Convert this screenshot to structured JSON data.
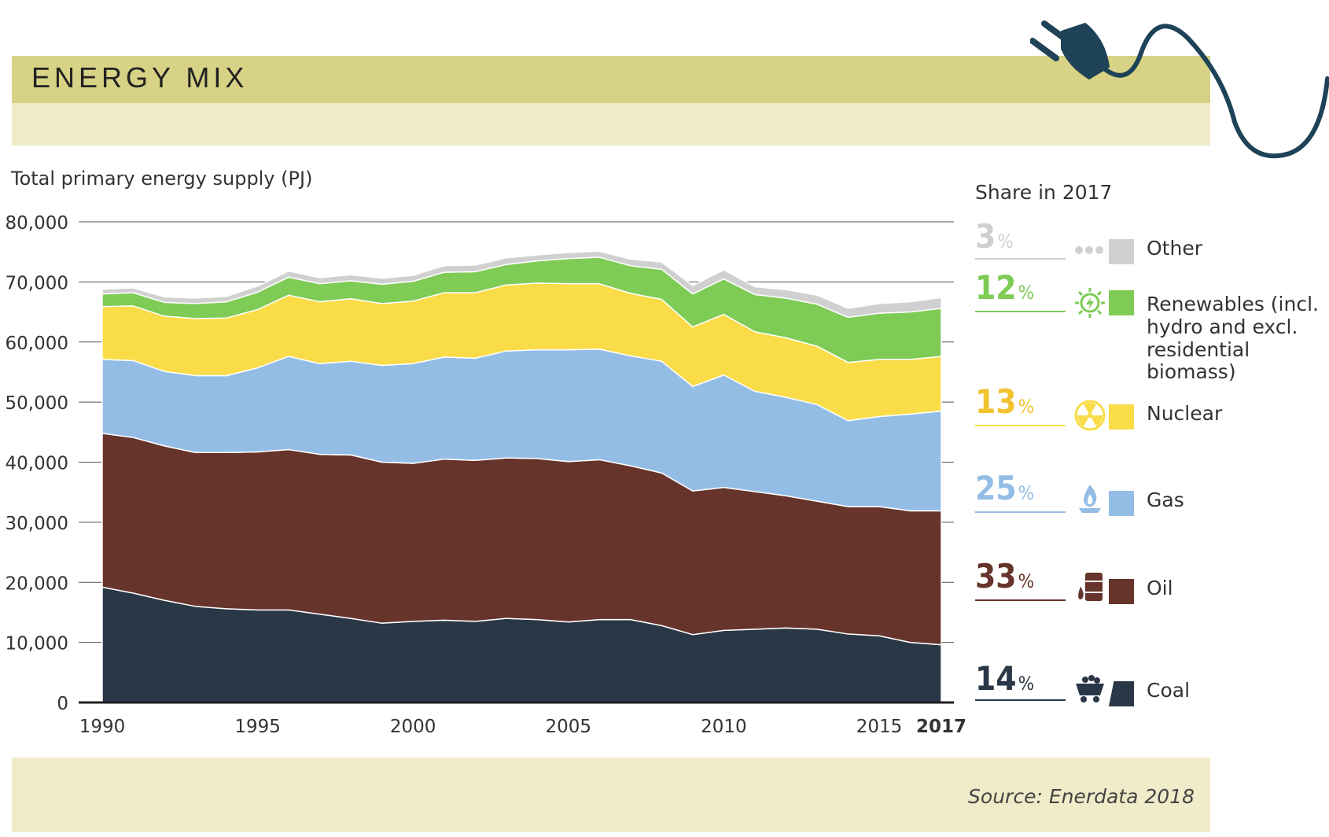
{
  "header": {
    "title": "ENERGY MIX"
  },
  "source": "Source: Enerdata 2018",
  "legend": {
    "title": "Share in 2017",
    "items": [
      {
        "key": "other",
        "pct": "3",
        "unit": "%",
        "label": "Other",
        "color": "#d0d0d0",
        "icon": "dots-icon"
      },
      {
        "key": "renewables",
        "pct": "12",
        "unit": "%",
        "label": "Renewables (incl. hydro and excl. residential biomass)",
        "color": "#7ecb56",
        "icon": "sun-icon"
      },
      {
        "key": "nuclear",
        "pct": "13",
        "unit": "%",
        "label": "Nuclear",
        "color": "#f9dc47",
        "icon": "radiation-icon"
      },
      {
        "key": "gas",
        "pct": "25",
        "unit": "%",
        "label": "Gas",
        "color": "#94bde6",
        "icon": "flame-icon"
      },
      {
        "key": "oil",
        "pct": "33",
        "unit": "%",
        "label": "Oil",
        "color": "#66342b",
        "icon": "barrel-icon"
      },
      {
        "key": "coal",
        "pct": "14",
        "unit": "%",
        "label": "Coal",
        "color": "#2a3747",
        "icon": "minecart-icon"
      }
    ]
  },
  "chart_data": {
    "type": "area",
    "stacked": true,
    "title": "",
    "ylabel": "Total primary energy supply (PJ)",
    "xlabel": "",
    "ylim": [
      0,
      80000
    ],
    "yticks": [
      0,
      10000,
      20000,
      30000,
      40000,
      50000,
      60000,
      70000,
      80000
    ],
    "ytick_labels": [
      "0",
      "10,000",
      "20,000",
      "30,000",
      "40,000",
      "50,000",
      "60,000",
      "70,000",
      "80,000"
    ],
    "xticks": [
      1990,
      1995,
      2000,
      2005,
      2010,
      2015,
      2017
    ],
    "xtick_labels": [
      "1990",
      "1995",
      "2000",
      "2005",
      "2010",
      "2015",
      "2017"
    ],
    "grid": true,
    "x": [
      1990,
      1991,
      1992,
      1993,
      1994,
      1995,
      1996,
      1997,
      1998,
      1999,
      2000,
      2001,
      2002,
      2003,
      2004,
      2005,
      2006,
      2007,
      2008,
      2009,
      2010,
      2011,
      2012,
      2013,
      2014,
      2015,
      2016,
      2017
    ],
    "series": [
      {
        "name": "Coal",
        "color": "#2a3747",
        "values": [
          19200,
          18200,
          17000,
          16000,
          15600,
          15400,
          15400,
          14700,
          14000,
          13200,
          13500,
          13700,
          13500,
          14000,
          13800,
          13400,
          13800,
          13800,
          12800,
          11300,
          12000,
          12200,
          12400,
          12200,
          11400,
          11100,
          10000,
          9600
        ]
      },
      {
        "name": "Oil",
        "color": "#66342b",
        "values": [
          25600,
          25900,
          25700,
          25600,
          26000,
          26300,
          26700,
          26600,
          27200,
          26800,
          26300,
          26800,
          26800,
          26700,
          26800,
          26700,
          26600,
          25600,
          25400,
          23900,
          23800,
          22900,
          22000,
          21300,
          21200,
          21500,
          21900,
          22300
        ]
      },
      {
        "name": "Gas",
        "color": "#94bde6",
        "values": [
          12300,
          12800,
          12400,
          12800,
          12800,
          14000,
          15500,
          15100,
          15600,
          16100,
          16600,
          17000,
          17000,
          17800,
          18100,
          18600,
          18400,
          18300,
          18600,
          17400,
          18700,
          16700,
          16400,
          16100,
          14300,
          15000,
          16100,
          16600
        ]
      },
      {
        "name": "Nuclear",
        "color": "#f9dc47",
        "values": [
          8800,
          9100,
          9200,
          9500,
          9600,
          9700,
          10200,
          10300,
          10400,
          10300,
          10400,
          10700,
          10900,
          11000,
          11100,
          11000,
          10900,
          10400,
          10300,
          9900,
          10100,
          9900,
          9900,
          9700,
          9700,
          9500,
          9100,
          9100
        ]
      },
      {
        "name": "Renewables",
        "color": "#7ecb56",
        "values": [
          2100,
          2200,
          2300,
          2500,
          2700,
          2900,
          3000,
          3000,
          3000,
          3200,
          3300,
          3400,
          3500,
          3400,
          3700,
          4200,
          4400,
          4600,
          5000,
          5500,
          5900,
          6200,
          6600,
          7000,
          7500,
          7700,
          7900,
          8000
        ]
      },
      {
        "name": "Other",
        "color": "#d0d0d0",
        "values": [
          800,
          800,
          900,
          900,
          900,
          1000,
          1000,
          1000,
          1000,
          1000,
          1000,
          1100,
          1100,
          1100,
          1000,
          1000,
          1000,
          1100,
          1200,
          1400,
          1500,
          1300,
          1400,
          1500,
          1500,
          1600,
          1700,
          1800
        ]
      }
    ]
  }
}
